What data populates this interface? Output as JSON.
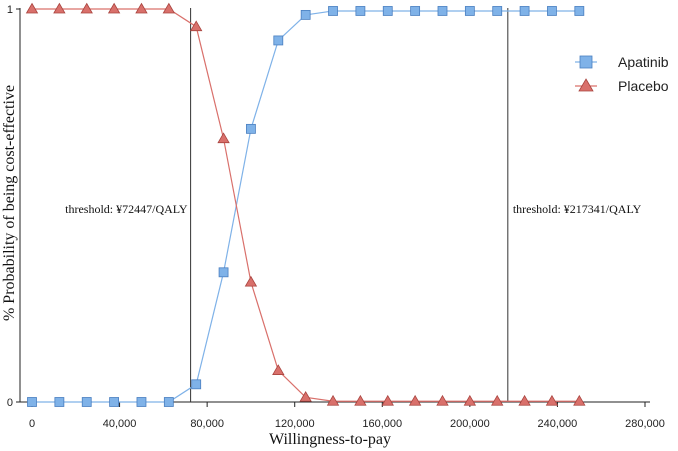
{
  "chart_data": {
    "type": "line",
    "title": "",
    "xlabel": "Willingness-to-pay",
    "ylabel": "% Probability of being cost-effective",
    "xlim": [
      0,
      280000
    ],
    "ylim": [
      0,
      1
    ],
    "x_ticks": [
      0,
      40000,
      80000,
      120000,
      160000,
      200000,
      240000,
      280000
    ],
    "x_tick_labels": [
      "0",
      "40,000",
      "80,000",
      "120,000",
      "160,000",
      "200,000",
      "240,000",
      "280,000"
    ],
    "y_ticks": [
      0,
      1
    ],
    "y_tick_labels": [
      "0",
      "1"
    ],
    "grid": false,
    "legend_position": "top-right",
    "x": [
      0,
      12500,
      25000,
      37500,
      50000,
      62500,
      75000,
      87500,
      100000,
      112500,
      125000,
      137500,
      150000,
      162500,
      175000,
      187500,
      200000,
      212500,
      225000,
      237500,
      250000
    ],
    "series": [
      {
        "name": "Apatinib",
        "marker": "square",
        "color": "#7FB2E8",
        "edge_color": "#4A7FC0",
        "values": [
          0,
          0,
          0,
          0,
          0,
          0,
          0.045,
          0.33,
          0.695,
          0.92,
          0.985,
          0.995,
          0.995,
          0.995,
          0.995,
          0.995,
          0.995,
          0.995,
          0.995,
          0.995,
          0.995
        ]
      },
      {
        "name": "Placebo",
        "marker": "triangle",
        "color": "#D9706B",
        "edge_color": "#A9443F",
        "values": [
          1,
          1,
          1,
          1,
          1,
          1,
          0.955,
          0.67,
          0.305,
          0.08,
          0.012,
          0.002,
          0.002,
          0.002,
          0.002,
          0.002,
          0.002,
          0.002,
          0.002,
          0.002,
          0.002
        ]
      }
    ],
    "annotations": [
      {
        "x": 72447,
        "label": "threshold: ¥72447/QALY"
      },
      {
        "x": 217341,
        "label": "threshold: ¥217341/QALY"
      }
    ]
  }
}
